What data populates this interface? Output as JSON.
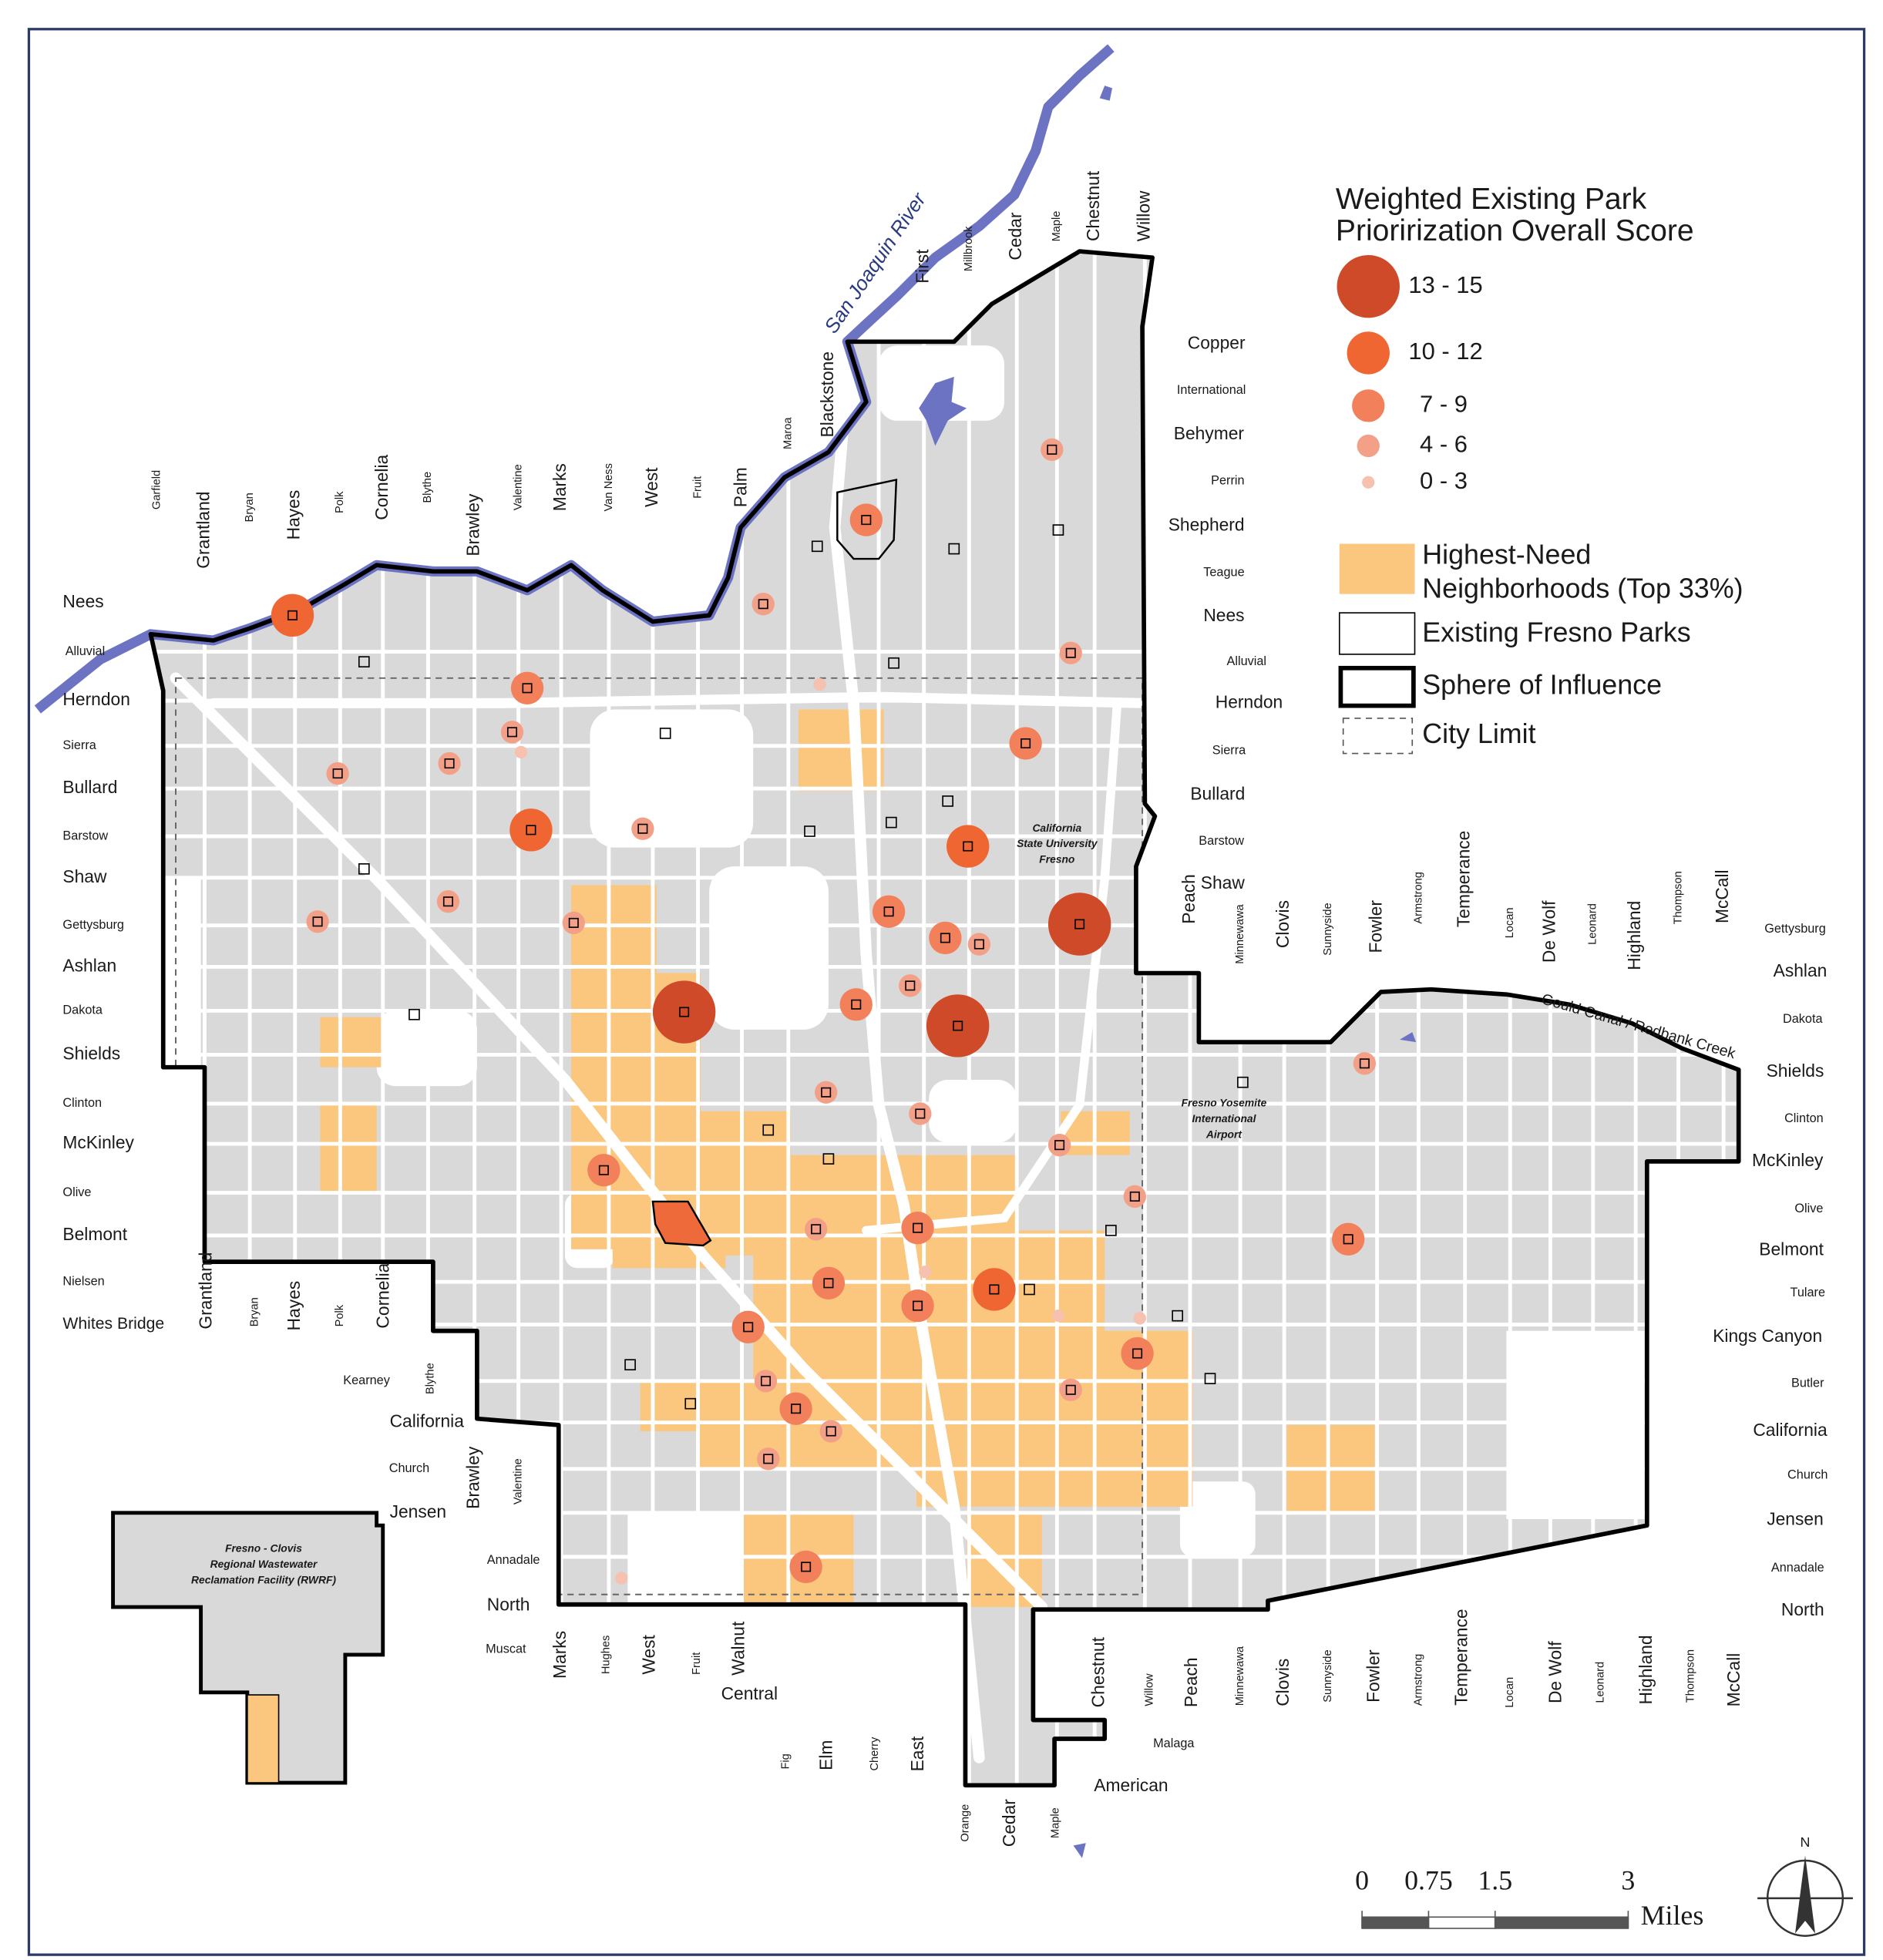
{
  "legend": {
    "title": [
      "Weighted Existing Park",
      "Priorirization Overall Score"
    ],
    "classes": [
      "13 - 15",
      "10 - 12",
      "7 - 9",
      "4 - 6",
      "0 - 3"
    ],
    "need": [
      "Highest-Need",
      "Neighborhoods (Top 33%)"
    ],
    "parks": "Existing Fresno Parks",
    "sphere": "Sphere of Influence",
    "city": "City Limit"
  },
  "places": {
    "csuf": [
      "California",
      "State University",
      "Fresno"
    ],
    "airport": [
      "Fresno Yosemite",
      "International",
      "Airport"
    ],
    "rwrf": [
      "Fresno - Clovis",
      "Regional Wastewater",
      "Reclamation Facility (RWRF)"
    ],
    "river": "San Joaquin River",
    "canal": "Gould Canal / Redbank Creek"
  },
  "streets": {
    "left": [
      "Nees",
      "Alluvial",
      "Herndon",
      "Sierra",
      "Bullard",
      "Barstow",
      "Shaw",
      "Gettysburg",
      "Ashlan",
      "Dakota",
      "Shields",
      "Clinton",
      "McKinley",
      "Olive",
      "Belmont",
      "Nielsen",
      "Whites Bridge"
    ],
    "top": [
      "Garfield",
      "Grantland",
      "Bryan",
      "Hayes",
      "Polk",
      "Cornelia",
      "Blythe",
      "Brawley",
      "Valentine",
      "Marks",
      "Van Ness",
      "West",
      "Fruit",
      "Palm",
      "Maroa",
      "Blackstone",
      "First",
      "Millbrook",
      "Cedar",
      "Maple",
      "Chestnut",
      "Willow"
    ],
    "right_inner": [
      "Copper",
      "International",
      "Behymer",
      "Perrin",
      "Shepherd",
      "Teague",
      "Nees",
      "Alluvial",
      "Herndon",
      "Sierra",
      "Bullard",
      "Barstow",
      "Shaw"
    ],
    "mid_row": [
      "Peach",
      "Minnewawa",
      "Clovis",
      "Sunnyside",
      "Fowler",
      "Armstrong",
      "Temperance",
      "Locan",
      "De Wolf",
      "Leonard",
      "Highland",
      "Thompson",
      "McCall"
    ],
    "right": [
      "Gettysburg",
      "Ashlan",
      "Dakota",
      "Shields",
      "Clinton",
      "McKinley",
      "Olive",
      "Belmont",
      "Tulare",
      "Kings Canyon",
      "Butler",
      "California",
      "Church",
      "Jensen",
      "Annadale",
      "North"
    ],
    "lower_left": [
      "Grantland",
      "Bryan",
      "Hayes",
      "Polk",
      "Cornelia",
      "Kearney",
      "Blythe",
      "California",
      "Church",
      "Jensen",
      "Brawley",
      "Valentine",
      "Annadale",
      "North",
      "Muscat"
    ],
    "bottom": [
      "Marks",
      "Hughes",
      "West",
      "Fruit",
      "Walnut",
      "Central",
      "Chestnut",
      "Willow",
      "Peach",
      "Minnewawa",
      "Clovis",
      "Sunnyside",
      "Fowler",
      "Armstrong",
      "Temperance",
      "Locan",
      "De Wolf",
      "Leonard",
      "Highland",
      "Thompson",
      "McCall",
      "Malaga",
      "American",
      "Fig",
      "Elm",
      "Cherry",
      "East",
      "Orange",
      "Cedar",
      "Maple"
    ]
  },
  "scale": {
    "ticks": [
      0,
      0.75,
      1.5,
      3
    ],
    "unit": "Miles"
  },
  "north": "N"
}
